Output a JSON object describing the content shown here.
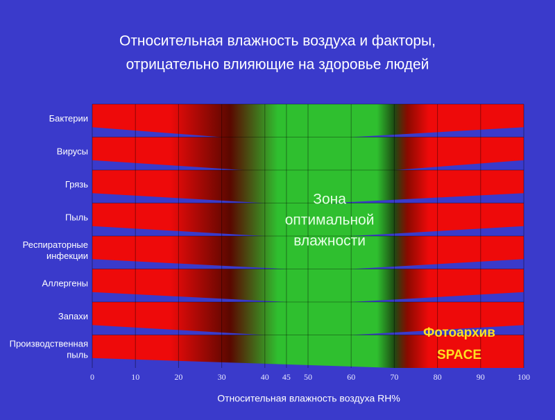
{
  "chart_data": {
    "type": "humidity-zones",
    "title_lines": [
      "Относительная влажность воздуха и факторы,",
      "отрицательно влияющие на здоровье людей"
    ],
    "x_label": "Относительная влажность воздуха RH%",
    "categories": [
      [
        "Бактерии"
      ],
      [
        "Вирусы"
      ],
      [
        "Грязь"
      ],
      [
        "Пыль"
      ],
      [
        "Респираторные",
        "инфекции"
      ],
      [
        "Аллергены"
      ],
      [
        "Запахи"
      ],
      [
        "Производственная",
        "пыль"
      ]
    ],
    "left_end": [
      30,
      35,
      40,
      40,
      45,
      45,
      40,
      70
    ],
    "right_start": [
      60,
      70,
      55,
      60,
      60,
      60,
      60,
      100
    ],
    "xlim": [
      0,
      100
    ],
    "xticks": [
      0,
      10,
      20,
      30,
      40,
      45,
      50,
      60,
      70,
      80,
      90,
      100
    ],
    "optimal_zone": [
      40,
      70
    ],
    "zone_label": [
      "Зона",
      "оптимальной",
      "влажности"
    ],
    "color": "#ee0a0a",
    "zone_color": "#2fbf2f",
    "background": "#3a3acb",
    "watermark": [
      "Фотоархив",
      "SPACE"
    ]
  }
}
